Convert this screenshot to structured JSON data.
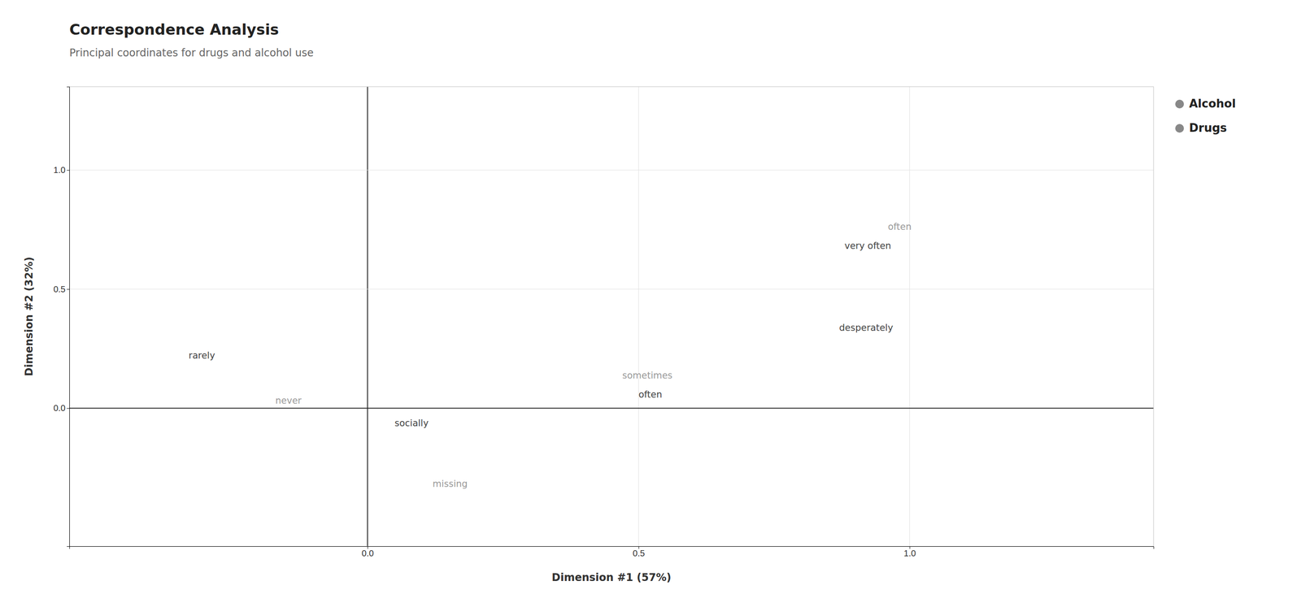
{
  "chart_data": {
    "type": "scatter",
    "title": "Correspondence Analysis",
    "subtitle": "Principal coordinates for drugs and alcohol use",
    "xlabel": "Dimension #1 (57%)",
    "ylabel": "Dimension #2 (32%)",
    "xlim": [
      -0.55,
      1.45
    ],
    "ylim": [
      -0.58,
      1.35
    ],
    "xticks": [
      {
        "value": 0.0,
        "label": "0.0"
      },
      {
        "value": 0.5,
        "label": "0.5"
      },
      {
        "value": 1.0,
        "label": "1.0"
      }
    ],
    "yticks": [
      {
        "value": 0.0,
        "label": "0.0"
      },
      {
        "value": 0.5,
        "label": "0.5"
      },
      {
        "value": 1.0,
        "label": "1.0"
      }
    ],
    "grid": true,
    "series": [
      {
        "name": "Alcohol",
        "color": "#888888",
        "labels": [
          "never",
          "socially",
          "rarely",
          "sometimes",
          "often",
          "missing"
        ],
        "x": [
          -0.17,
          0.05,
          -0.33,
          0.47,
          0.5,
          0.12
        ],
        "values": [
          0.03,
          -0.065,
          0.22,
          0.135,
          0.055,
          -0.32
        ],
        "colors": [
          "#999999",
          "#444444",
          "#444444",
          "#999999",
          "#444444",
          "#999999"
        ]
      },
      {
        "name": "Drugs",
        "color": "#888888",
        "labels": [
          "often",
          "very often",
          "desperately"
        ],
        "x": [
          0.96,
          0.88,
          0.87
        ],
        "values": [
          0.76,
          0.68,
          0.335
        ],
        "colors": [
          "#999999",
          "#444444",
          "#444444"
        ]
      }
    ]
  }
}
